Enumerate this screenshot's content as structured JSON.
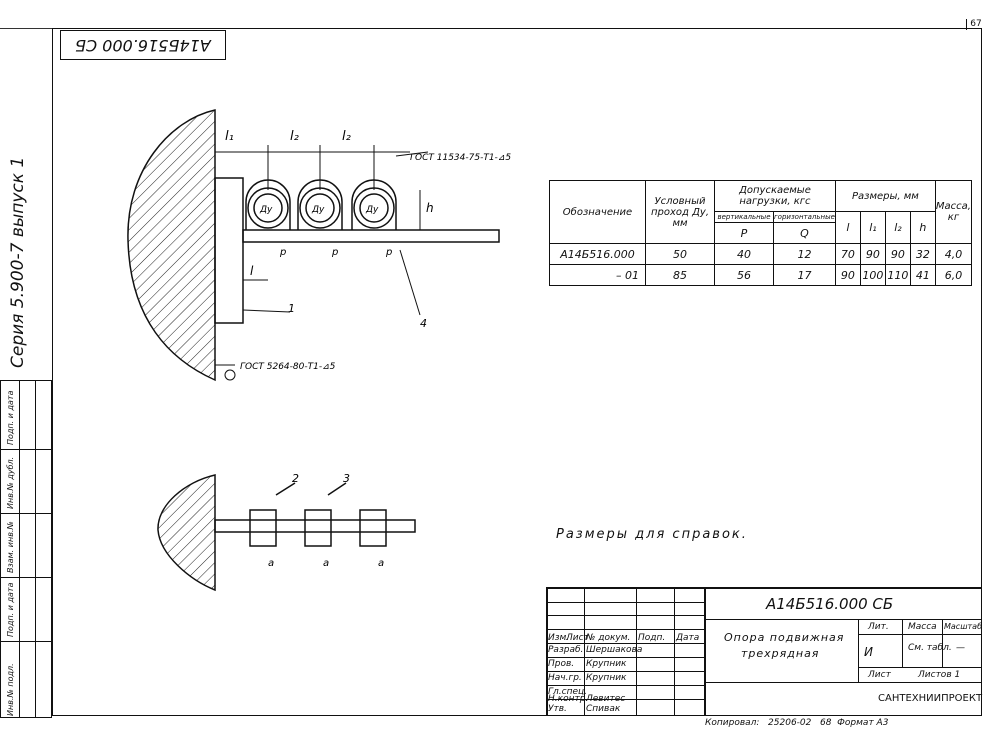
{
  "page_number": "67",
  "designation_rotated": "А14Б516.000 СБ",
  "series_line": "Серия 5.900-7 выпуск 1",
  "sidebar_labels": [
    "Инв.№ подл.",
    "Подп. и дата",
    "Взам. инв.№",
    "Инв.№ дубл.",
    "Подп. и дата"
  ],
  "drawing": {
    "dims": [
      "l₁",
      "l₂",
      "l₂",
      "h",
      "l",
      "p",
      "p",
      "p",
      "a",
      "a",
      "a"
    ],
    "pipe_labels": [
      "Ду",
      "Ду",
      "Ду"
    ],
    "callouts": [
      "1",
      "2",
      "3",
      "4"
    ],
    "weld_note_top": "ГОСТ 11534-75-Т1-⊿5",
    "weld_note_bottom": "ГОСТ 5264-80-Т1-⊿5"
  },
  "spec_table": {
    "headers": {
      "designation": "Обозначение",
      "nominal_pass": "Условный проход Ду, мм",
      "loads": "Допускаемые нагрузки, кгс",
      "vertical": "вертикальные",
      "horizontal": "горизонтальные",
      "p": "P",
      "q": "Q",
      "sizes": "Размеры, мм",
      "l": "l",
      "l1": "l₁",
      "l2": "l₂",
      "h": "h",
      "mass": "Масса, кг"
    },
    "rows": [
      {
        "designation": "А14Б516.000",
        "du": "50",
        "p": "40",
        "q": "12",
        "l": "70",
        "l1": "90",
        "l2": "90",
        "h": "32",
        "mass": "4,0"
      },
      {
        "designation": "– 01",
        "du": "85",
        "p": "56",
        "q": "17",
        "l": "90",
        "l1": "100",
        "l2": "110",
        "h": "41",
        "mass": "6,0"
      }
    ]
  },
  "note": "Размеры для справок.",
  "title_block": {
    "doc_code": "А14Б516.000 СБ",
    "name_line1": "Опора подвижная",
    "name_line2": "трехрядная",
    "col_headers": [
      "Изм.",
      "Лист",
      "№ докум.",
      "Подп.",
      "Дата"
    ],
    "roles": [
      {
        "role": "Разраб.",
        "name": "Шершакова"
      },
      {
        "role": "Пров.",
        "name": "Крупник"
      },
      {
        "role": "Нач.гр.",
        "name": "Крупник"
      },
      {
        "role": "Гл.спец.",
        "name": ""
      },
      {
        "role": "Н.контр.",
        "name": "Левитес"
      },
      {
        "role": "Утв.",
        "name": "Спивак"
      }
    ],
    "lit_label": "Лит.",
    "lit_value": "И",
    "mass_label": "Масса",
    "mass_value": "См. табл.",
    "scale_label": "Масштаб",
    "scale_value": "—",
    "sheet_label": "Лист",
    "sheets_label": "Листов 1",
    "organization": "САНТЕХНИИПРОЕКТ"
  },
  "footer": {
    "copied": "Копировал:",
    "number": "25206-02",
    "sheet": "68",
    "format": "Формат А3"
  }
}
